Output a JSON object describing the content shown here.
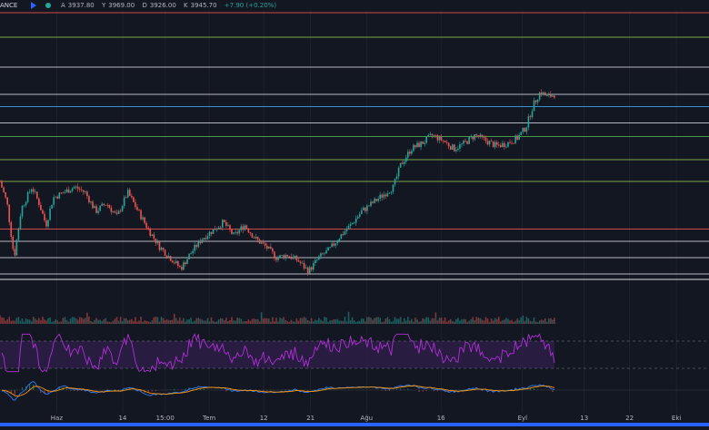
{
  "header": {
    "exchange": "ANCE",
    "ohlc": [
      {
        "label": "A",
        "value": "3937.80"
      },
      {
        "label": "Y",
        "value": "3969.00"
      },
      {
        "label": "D",
        "value": "3926.00"
      },
      {
        "label": "K",
        "value": "3945.70"
      }
    ],
    "change": "+7.90 (+0.20%)"
  },
  "colors": {
    "background": "#131722",
    "candle_up": "#26a69a",
    "candle_down": "#ef5350",
    "rsi": "#b02fd6",
    "rsi_band": "#2b1e45",
    "macd": "#2e7bf3",
    "signal": "#ff9800",
    "accent": "#2962ff"
  },
  "chart_data": {
    "type": "candlestick",
    "x_axis_labels": [
      {
        "label": "Haz",
        "pos": 0.08
      },
      {
        "label": "14",
        "pos": 0.173
      },
      {
        "label": "15:00",
        "pos": 0.233
      },
      {
        "label": "Tem",
        "pos": 0.295
      },
      {
        "label": "12",
        "pos": 0.372
      },
      {
        "label": "21",
        "pos": 0.438
      },
      {
        "label": "Ağu",
        "pos": 0.517
      },
      {
        "label": "16",
        "pos": 0.622
      },
      {
        "label": "Eyl",
        "pos": 0.737
      },
      {
        "label": "13",
        "pos": 0.824
      },
      {
        "label": "22",
        "pos": 0.888
      },
      {
        "label": "Eki",
        "pos": 0.954
      }
    ],
    "horizontal_levels": [
      {
        "level": 1.0,
        "color": "#ef5350"
      },
      {
        "level": 0.91,
        "color": "#8bc34a"
      },
      {
        "level": 0.8,
        "color": "#d1d4dc"
      },
      {
        "level": 0.7,
        "color": "#d1d4dc"
      },
      {
        "level": 0.655,
        "color": "#42a5f5"
      },
      {
        "level": 0.595,
        "color": "#d1d4dc"
      },
      {
        "level": 0.545,
        "color": "#4caf50"
      },
      {
        "level": 0.46,
        "color": "#8bc34a"
      },
      {
        "level": 0.38,
        "color": "#8bc34a"
      },
      {
        "level": 0.205,
        "color": "#ef5350"
      },
      {
        "level": 0.16,
        "color": "#d1d4dc"
      },
      {
        "level": 0.1,
        "color": "#d1d4dc"
      },
      {
        "level": 0.04,
        "color": "#d1d4dc"
      },
      {
        "level": 0.02,
        "color": "#ffffff"
      }
    ],
    "price_path": [
      [
        0.0,
        0.38
      ],
      [
        0.01,
        0.3
      ],
      [
        0.02,
        0.1
      ],
      [
        0.03,
        0.28
      ],
      [
        0.045,
        0.36
      ],
      [
        0.055,
        0.3
      ],
      [
        0.065,
        0.22
      ],
      [
        0.075,
        0.32
      ],
      [
        0.09,
        0.34
      ],
      [
        0.105,
        0.36
      ],
      [
        0.12,
        0.34
      ],
      [
        0.135,
        0.27
      ],
      [
        0.15,
        0.3
      ],
      [
        0.165,
        0.25
      ],
      [
        0.18,
        0.34
      ],
      [
        0.195,
        0.27
      ],
      [
        0.21,
        0.2
      ],
      [
        0.225,
        0.14
      ],
      [
        0.24,
        0.1
      ],
      [
        0.255,
        0.06
      ],
      [
        0.27,
        0.12
      ],
      [
        0.285,
        0.17
      ],
      [
        0.3,
        0.2
      ],
      [
        0.315,
        0.23
      ],
      [
        0.33,
        0.18
      ],
      [
        0.345,
        0.22
      ],
      [
        0.36,
        0.17
      ],
      [
        0.375,
        0.14
      ],
      [
        0.39,
        0.1
      ],
      [
        0.405,
        0.11
      ],
      [
        0.42,
        0.09
      ],
      [
        0.435,
        0.05
      ],
      [
        0.45,
        0.1
      ],
      [
        0.465,
        0.13
      ],
      [
        0.48,
        0.18
      ],
      [
        0.495,
        0.22
      ],
      [
        0.51,
        0.27
      ],
      [
        0.525,
        0.3
      ],
      [
        0.54,
        0.33
      ],
      [
        0.555,
        0.36
      ],
      [
        0.565,
        0.44
      ],
      [
        0.58,
        0.5
      ],
      [
        0.595,
        0.52
      ],
      [
        0.61,
        0.55
      ],
      [
        0.625,
        0.53
      ],
      [
        0.64,
        0.5
      ],
      [
        0.655,
        0.52
      ],
      [
        0.67,
        0.55
      ],
      [
        0.685,
        0.53
      ],
      [
        0.7,
        0.51
      ],
      [
        0.715,
        0.52
      ],
      [
        0.73,
        0.54
      ],
      [
        0.742,
        0.58
      ],
      [
        0.752,
        0.66
      ],
      [
        0.762,
        0.71
      ],
      [
        0.772,
        0.69
      ],
      [
        0.782,
        0.7
      ]
    ],
    "volume_panel": true,
    "rsi_panel": {
      "upper": 0.7,
      "lower": 0.3
    },
    "macd_panel": true
  }
}
